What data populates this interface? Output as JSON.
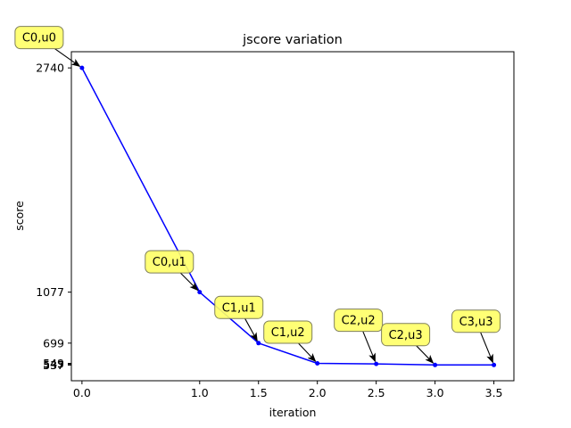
{
  "chart_data": {
    "type": "line",
    "title": "jscore variation",
    "xlabel": "iteration",
    "ylabel": "score",
    "xlim": [
      -0.09,
      3.67
    ],
    "ylim": [
      420,
      2860
    ],
    "xticks": [
      "0.0",
      "1.0",
      "1.5",
      "2.0",
      "2.5",
      "3.0",
      "3.5"
    ],
    "xtick_values": [
      0.0,
      1.0,
      1.5,
      2.0,
      2.5,
      3.0,
      3.5
    ],
    "yticks": [
      "2740",
      "1077",
      "699",
      "549",
      "545",
      "537",
      "537"
    ],
    "ytick_values": [
      2740,
      1077,
      699,
      549,
      545,
      537,
      537
    ],
    "grid": false,
    "series": [
      {
        "color": "#0000ff",
        "x": [
          0.0,
          1.0,
          1.5,
          2.0,
          2.5,
          3.0,
          3.5
        ],
        "y": [
          2740,
          1077,
          699,
          549,
          545,
          537,
          537
        ],
        "annotations": [
          "C0,u0",
          "C0,u1",
          "C1,u1",
          "C1,u2",
          "C2,u2",
          "C2,u3",
          "C3,u3"
        ]
      }
    ],
    "annotation_box_color": "#ffff66"
  }
}
